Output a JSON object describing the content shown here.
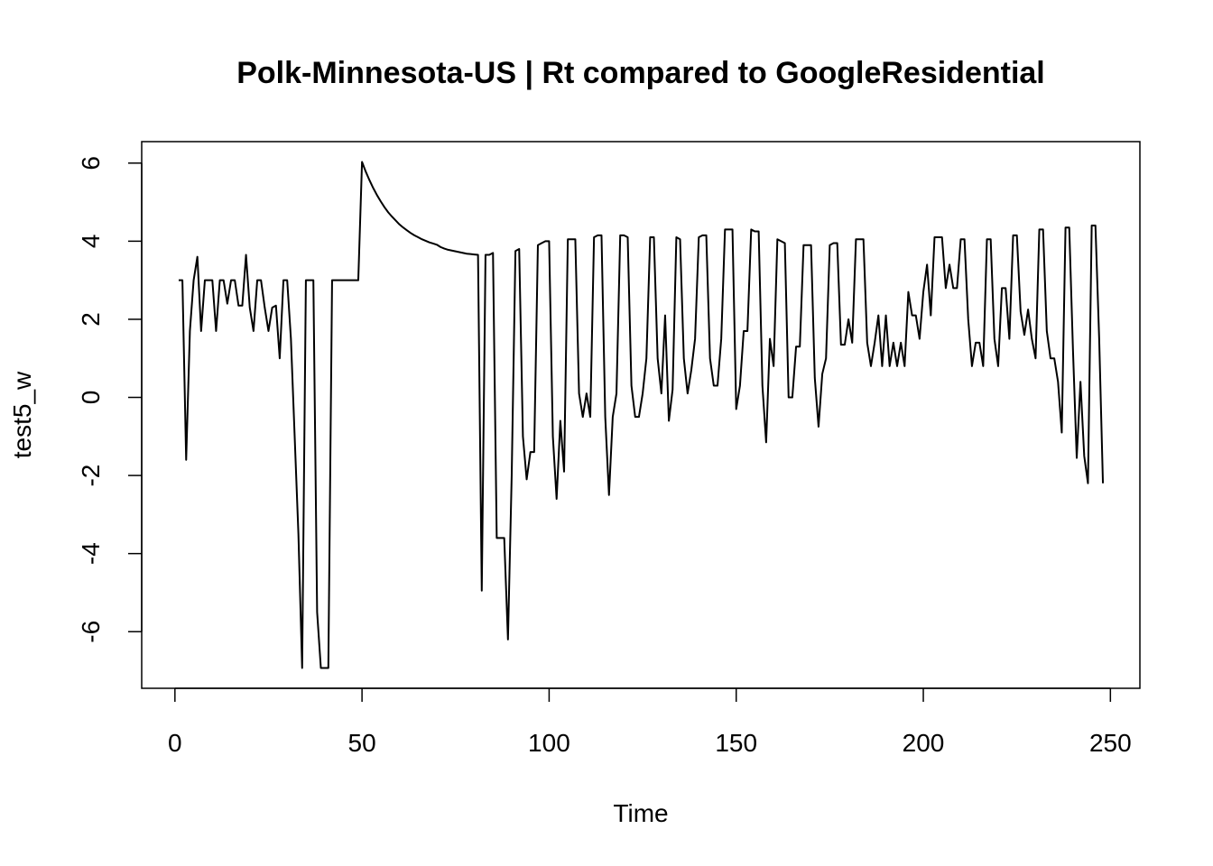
{
  "chart_data": {
    "type": "line",
    "title": "Polk-Minnesota-US | Rt compared to GoogleResidential",
    "xlabel": "Time",
    "ylabel": "test5_w",
    "color": "#000000",
    "x": [
      1,
      2,
      3,
      4,
      5,
      6,
      7,
      8,
      9,
      10,
      11,
      12,
      13,
      14,
      15,
      16,
      17,
      18,
      19,
      20,
      21,
      22,
      23,
      24,
      25,
      26,
      27,
      28,
      29,
      30,
      31,
      32,
      33,
      34,
      35,
      36,
      37,
      38,
      39,
      40,
      41,
      42,
      43,
      44,
      45,
      46,
      47,
      48,
      49,
      50,
      51,
      52,
      53,
      54,
      55,
      56,
      57,
      58,
      59,
      60,
      61,
      62,
      63,
      64,
      65,
      66,
      67,
      68,
      69,
      70,
      71,
      72,
      73,
      74,
      75,
      76,
      77,
      78,
      79,
      80,
      81,
      82,
      83,
      84,
      85,
      86,
      87,
      88,
      89,
      90,
      91,
      92,
      93,
      94,
      95,
      96,
      97,
      98,
      99,
      100,
      101,
      102,
      103,
      104,
      105,
      106,
      107,
      108,
      109,
      110,
      111,
      112,
      113,
      114,
      115,
      116,
      117,
      118,
      119,
      120,
      121,
      122,
      123,
      124,
      125,
      126,
      127,
      128,
      129,
      130,
      131,
      132,
      133,
      134,
      135,
      136,
      137,
      138,
      139,
      140,
      141,
      142,
      143,
      144,
      145,
      146,
      147,
      148,
      149,
      150,
      151,
      152,
      153,
      154,
      155,
      156,
      157,
      158,
      159,
      160,
      161,
      162,
      163,
      164,
      165,
      166,
      167,
      168,
      169,
      170,
      171,
      172,
      173,
      174,
      175,
      176,
      177,
      178,
      179,
      180,
      181,
      182,
      183,
      184,
      185,
      186,
      187,
      188,
      189,
      190,
      191,
      192,
      193,
      194,
      195,
      196,
      197,
      198,
      199,
      200,
      201,
      202,
      203,
      204,
      205,
      206,
      207,
      208,
      209,
      210,
      211,
      212,
      213,
      214,
      215,
      216,
      217,
      218,
      219,
      220,
      221,
      222,
      223,
      224,
      225,
      226,
      227,
      228,
      229,
      230,
      231,
      232,
      233,
      234,
      235,
      236,
      237,
      238,
      239,
      240,
      241,
      242,
      243,
      244,
      245,
      246,
      247,
      248
    ],
    "values": [
      3.0,
      3.0,
      -1.6,
      1.7,
      3.0,
      3.6,
      1.7,
      3.0,
      3.0,
      3.0,
      1.7,
      3.0,
      3.0,
      2.4,
      3.0,
      3.0,
      2.35,
      2.35,
      3.65,
      2.3,
      1.7,
      3.0,
      3.0,
      2.3,
      1.7,
      2.3,
      2.35,
      1.0,
      3.0,
      3.0,
      1.5,
      -1.0,
      -3.5,
      -6.93,
      3.0,
      3.0,
      3.0,
      -5.5,
      -6.93,
      -6.93,
      -6.93,
      3.0,
      3.0,
      3.0,
      3.0,
      3.0,
      3.0,
      3.0,
      3.0,
      6.03,
      5.78,
      5.56,
      5.36,
      5.18,
      5.02,
      4.87,
      4.74,
      4.63,
      4.53,
      4.43,
      4.35,
      4.28,
      4.21,
      4.15,
      4.1,
      4.05,
      4.01,
      3.97,
      3.94,
      3.91,
      3.85,
      3.81,
      3.78,
      3.76,
      3.74,
      3.72,
      3.7,
      3.68,
      3.67,
      3.66,
      3.65,
      -4.95,
      3.65,
      3.65,
      3.7,
      -3.6,
      -3.6,
      -3.6,
      -6.2,
      -2.0,
      3.75,
      3.8,
      -1.0,
      -2.1,
      -1.4,
      -1.4,
      3.9,
      3.95,
      4.0,
      4.0,
      -1.0,
      -2.6,
      -0.6,
      -1.9,
      4.05,
      4.05,
      4.05,
      0.1,
      -0.5,
      0.1,
      -0.5,
      4.1,
      4.15,
      4.15,
      -0.5,
      -2.5,
      -0.5,
      0.1,
      4.15,
      4.15,
      4.1,
      0.3,
      -0.5,
      -0.5,
      0.1,
      1.0,
      4.1,
      4.1,
      1.0,
      0.1,
      2.1,
      -0.6,
      0.2,
      4.1,
      4.05,
      1.0,
      0.1,
      0.7,
      1.5,
      4.1,
      4.15,
      4.15,
      1.0,
      0.3,
      0.3,
      1.5,
      4.3,
      4.3,
      4.3,
      -0.3,
      0.3,
      1.7,
      1.7,
      4.3,
      4.25,
      4.25,
      0.3,
      -1.15,
      1.5,
      0.8,
      4.05,
      4.0,
      3.95,
      0.0,
      0.0,
      1.3,
      1.3,
      3.9,
      3.9,
      3.9,
      0.5,
      -0.75,
      0.6,
      1.0,
      3.9,
      3.95,
      3.95,
      1.35,
      1.35,
      2.0,
      1.4,
      4.05,
      4.05,
      4.05,
      1.4,
      0.8,
      1.4,
      2.1,
      0.8,
      2.1,
      0.8,
      1.4,
      0.8,
      1.4,
      0.8,
      2.7,
      2.1,
      2.1,
      1.5,
      2.7,
      3.4,
      2.1,
      4.1,
      4.1,
      4.1,
      2.8,
      3.4,
      2.8,
      2.8,
      4.05,
      4.05,
      2.0,
      0.8,
      1.4,
      1.4,
      0.8,
      4.05,
      4.05,
      1.5,
      0.8,
      2.8,
      2.8,
      1.5,
      4.15,
      4.15,
      2.2,
      1.6,
      2.25,
      1.5,
      1.0,
      4.3,
      4.3,
      1.7,
      1.0,
      1.0,
      0.4,
      -0.9,
      4.35,
      4.35,
      1.2,
      -1.55,
      0.4,
      -1.5,
      -2.2,
      4.4,
      4.4,
      1.5,
      -2.2
    ],
    "xlim": [
      -8.88,
      257.88
    ],
    "ylim": [
      -7.45,
      6.55
    ],
    "xticks": [
      0,
      50,
      100,
      150,
      200,
      250
    ],
    "yticks": [
      -6,
      -4,
      -2,
      0,
      2,
      4,
      6
    ]
  }
}
